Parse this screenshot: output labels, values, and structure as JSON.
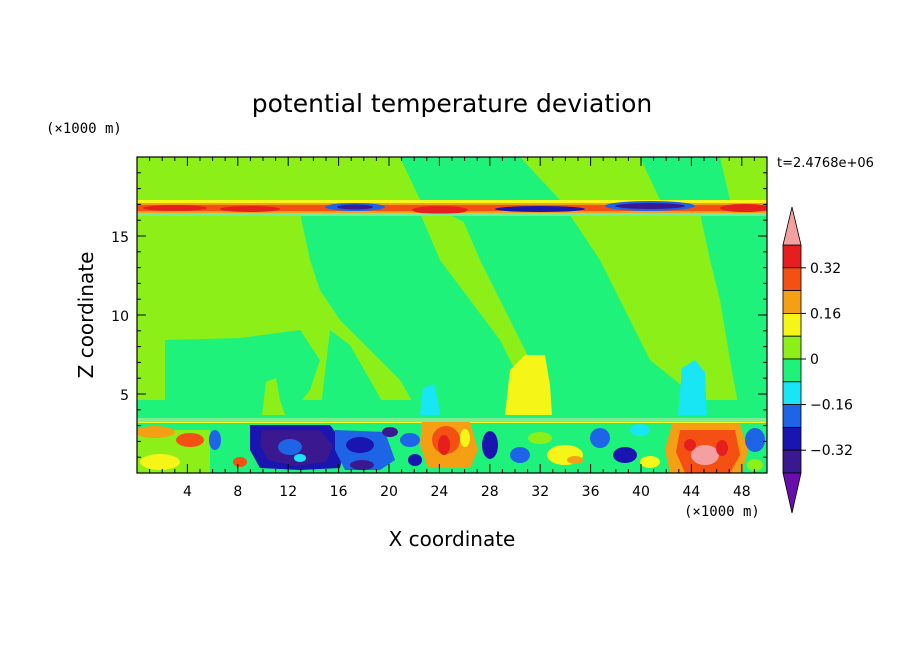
{
  "chart_data": {
    "type": "heatmap",
    "title": "potential temperature deviation",
    "xlabel": "X coordinate",
    "ylabel": "Z coordinate",
    "x_unit": "(×1000 m)",
    "y_unit": "(×1000 m)",
    "time_label": "t=2.4768e+06",
    "xlim": [
      0,
      50
    ],
    "ylim": [
      0,
      20
    ],
    "x_ticks": [
      4,
      8,
      12,
      16,
      20,
      24,
      28,
      32,
      36,
      40,
      44,
      48
    ],
    "y_ticks": [
      5,
      10,
      15
    ],
    "colorbar": {
      "levels": [
        -0.4,
        -0.32,
        -0.24,
        -0.16,
        -0.08,
        0,
        0.08,
        0.16,
        0.24,
        0.32,
        0.4
      ],
      "labeled_levels": [
        "0.32",
        "0.16",
        "0",
        "−0.16",
        "−0.32"
      ],
      "labeled_values": [
        0.32,
        0.16,
        0,
        -0.16,
        -0.32
      ],
      "colors": [
        "#6a0dad",
        "#3a1890",
        "#1a14b0",
        "#1e64e6",
        "#18e6f5",
        "#1ef27a",
        "#8cf018",
        "#f5f518",
        "#f5a014",
        "#f55014",
        "#e61e1e",
        "#f5a0a0"
      ],
      "extend": "both"
    },
    "field": {
      "bands": [
        {
          "z": [
            16.3,
            17.1
          ],
          "desc": "thin warm/cold inversion layer near 16.7 km"
        },
        {
          "z": [
            0,
            3.6
          ],
          "desc": "turbulent boundary layer with strong mixed anomalies"
        }
      ],
      "background": 0.04
    }
  }
}
